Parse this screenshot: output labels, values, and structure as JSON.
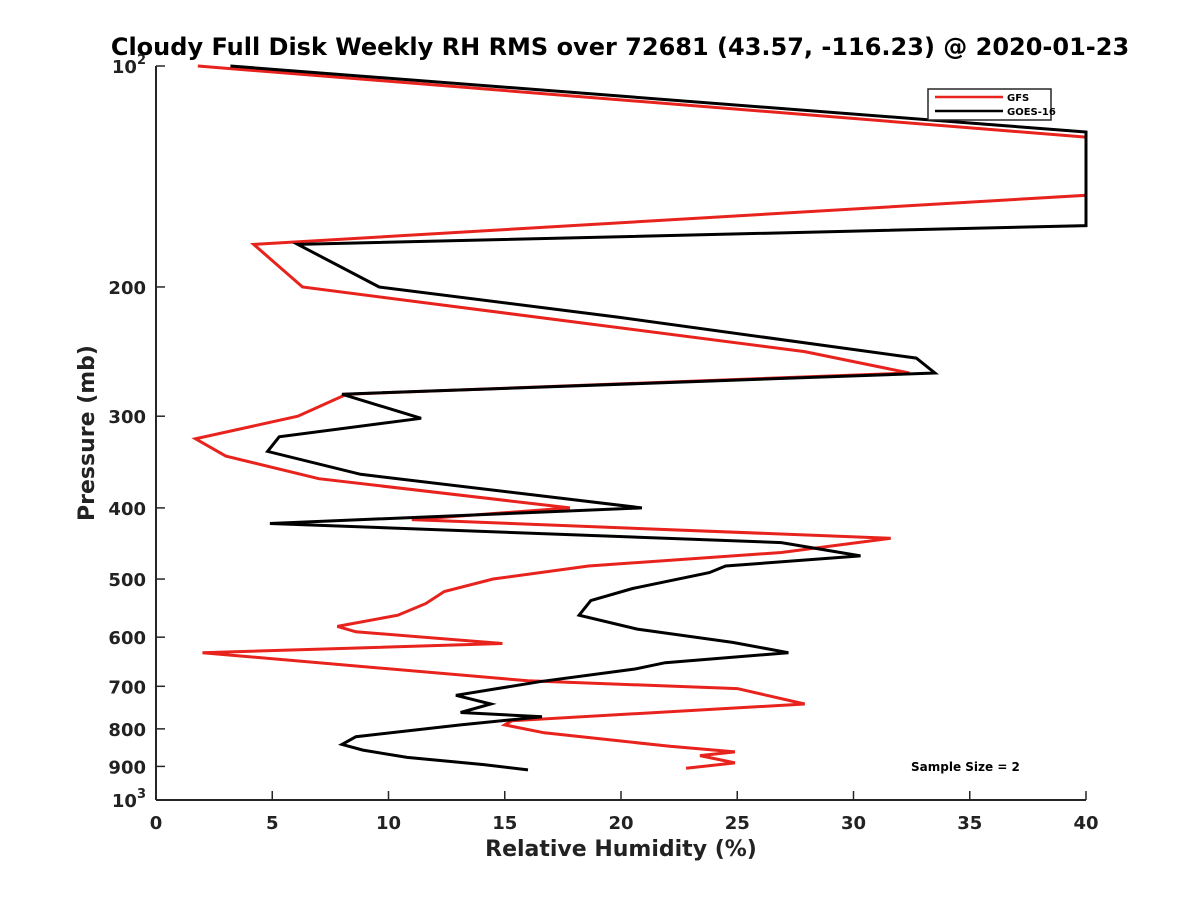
{
  "chart_data": {
    "type": "line",
    "title": "Cloudy Full Disk Weekly RH RMS over 72681 (43.57, -116.23) @ 2020-01-23",
    "xlabel": "Relative Humidity (%)",
    "ylabel": "Pressure (mb)",
    "xlim": [
      0,
      40
    ],
    "ylim": [
      100,
      1000
    ],
    "yscale": "log",
    "y_reversed": true,
    "grid": false,
    "legend_position": "top-right",
    "x_ticks": [
      "0",
      "5",
      "10",
      "15",
      "20",
      "25",
      "30",
      "35",
      "40"
    ],
    "y_ticks": [
      {
        "value": 100,
        "base": "10",
        "exp": "2"
      },
      {
        "value": 200,
        "label": "200"
      },
      {
        "value": 300,
        "label": "300"
      },
      {
        "value": 400,
        "label": "400"
      },
      {
        "value": 500,
        "label": "500"
      },
      {
        "value": 600,
        "label": "600"
      },
      {
        "value": 700,
        "label": "700"
      },
      {
        "value": 800,
        "label": "800"
      },
      {
        "value": 900,
        "label": "900"
      },
      {
        "value": 1000,
        "base": "10",
        "exp": "3"
      }
    ],
    "annotation": "Sample Size = 2",
    "series": [
      {
        "name": "GFS",
        "color": "#e8221c",
        "points": [
          [
            1.8,
            100
          ],
          [
            40,
            125
          ],
          [
            40,
            150
          ],
          [
            4.2,
            175
          ],
          [
            6.3,
            200
          ],
          [
            27.9,
            245
          ],
          [
            32.4,
            262
          ],
          [
            8.2,
            280
          ],
          [
            6.1,
            300
          ],
          [
            1.7,
            322
          ],
          [
            3.0,
            340
          ],
          [
            7.0,
            365
          ],
          [
            17.8,
            400
          ],
          [
            11.0,
            415
          ],
          [
            31.6,
            440
          ],
          [
            26.9,
            460
          ],
          [
            18.6,
            480
          ],
          [
            14.5,
            500
          ],
          [
            12.4,
            520
          ],
          [
            11.6,
            540
          ],
          [
            10.4,
            560
          ],
          [
            7.8,
            580
          ],
          [
            8.6,
            590
          ],
          [
            14.9,
            612
          ],
          [
            2.0,
            630
          ],
          [
            16.0,
            688
          ],
          [
            25.0,
            705
          ],
          [
            27.9,
            740
          ],
          [
            15.3,
            780
          ],
          [
            15.0,
            790
          ],
          [
            16.7,
            810
          ],
          [
            22.1,
            845
          ],
          [
            24.9,
            860
          ],
          [
            23.4,
            870
          ],
          [
            24.9,
            890
          ],
          [
            22.8,
            905
          ]
        ]
      },
      {
        "name": "GOES-16",
        "color": "#000000",
        "points": [
          [
            3.2,
            100
          ],
          [
            40,
            123
          ],
          [
            40,
            165
          ],
          [
            6.1,
            175
          ],
          [
            9.6,
            200
          ],
          [
            19.9,
            220
          ],
          [
            32.7,
            250
          ],
          [
            33.5,
            262
          ],
          [
            8.0,
            280
          ],
          [
            11.4,
            302
          ],
          [
            5.3,
            320
          ],
          [
            4.8,
            335
          ],
          [
            8.8,
            360
          ],
          [
            20.9,
            400
          ],
          [
            4.9,
            420
          ],
          [
            26.9,
            446
          ],
          [
            30.3,
            465
          ],
          [
            24.5,
            480
          ],
          [
            23.8,
            490
          ],
          [
            20.5,
            515
          ],
          [
            18.7,
            535
          ],
          [
            18.2,
            560
          ],
          [
            20.7,
            585
          ],
          [
            24.8,
            610
          ],
          [
            27.2,
            630
          ],
          [
            21.9,
            650
          ],
          [
            20.6,
            663
          ],
          [
            16.5,
            690
          ],
          [
            12.9,
            720
          ],
          [
            14.4,
            740
          ],
          [
            13.1,
            760
          ],
          [
            16.6,
            770
          ],
          [
            13.1,
            790
          ],
          [
            8.6,
            820
          ],
          [
            8.0,
            840
          ],
          [
            8.9,
            855
          ],
          [
            10.8,
            875
          ],
          [
            14.1,
            895
          ],
          [
            16.0,
            910
          ]
        ]
      }
    ]
  }
}
